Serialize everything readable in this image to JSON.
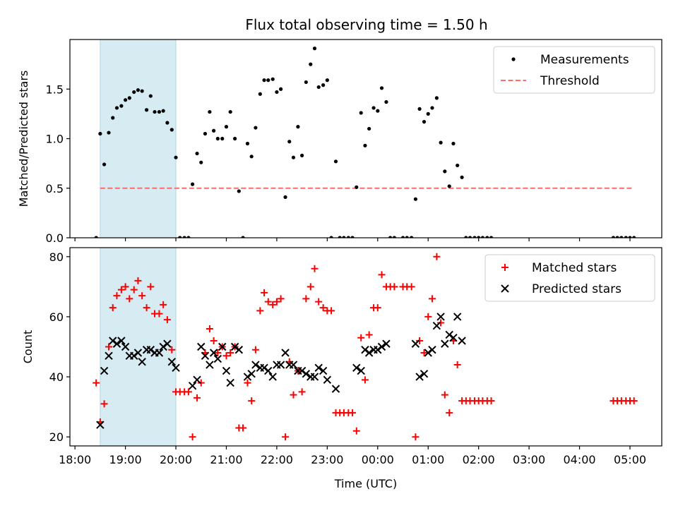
{
  "title": "Flux total observing time = 1.50 h",
  "colors": {
    "shade": "#add8e6",
    "threshold": "#ff6b6b",
    "measurement": "#000000",
    "matched": "#ff0000",
    "predicted": "#000000"
  },
  "chart_data": [
    {
      "type": "scatter",
      "ylabel": "Matched/Predicted stars",
      "xlim": [
        17.9,
        29.63
      ],
      "ylim": [
        0,
        2.0
      ],
      "y_ticks": [
        0.0,
        0.5,
        1.0,
        1.5
      ],
      "y_tick_labels": [
        "0.0",
        "0.5",
        "1.0",
        "1.5"
      ],
      "shade_x": [
        18.5,
        20.0
      ],
      "threshold": {
        "name": "Threshold",
        "y": 0.5,
        "x": [
          18.5,
          29.05
        ]
      },
      "legend": {
        "position": "top-right",
        "entries": [
          "Measurements",
          "Threshold"
        ]
      },
      "series": [
        {
          "name": "Measurements",
          "x": [
            18.42,
            18.5,
            18.58,
            18.67,
            18.75,
            18.83,
            18.92,
            19.0,
            19.08,
            19.17,
            19.25,
            19.33,
            19.42,
            19.5,
            19.58,
            19.67,
            19.75,
            19.83,
            19.92,
            20.0,
            20.08,
            20.17,
            20.25,
            20.33,
            20.42,
            20.5,
            20.58,
            20.67,
            20.75,
            20.83,
            20.92,
            21.0,
            21.08,
            21.17,
            21.25,
            21.33,
            21.42,
            21.5,
            21.58,
            21.67,
            21.75,
            21.83,
            21.92,
            22.0,
            22.08,
            22.17,
            22.25,
            22.33,
            22.42,
            22.5,
            22.58,
            22.67,
            22.75,
            22.83,
            22.92,
            23.0,
            23.08,
            23.17,
            23.25,
            23.33,
            23.42,
            23.5,
            23.58,
            23.67,
            23.75,
            23.83,
            23.92,
            24.0,
            24.08,
            24.17,
            24.25,
            24.33,
            24.5,
            24.58,
            24.67,
            24.75,
            24.83,
            24.92,
            25.0,
            25.08,
            25.17,
            25.25,
            25.33,
            25.42,
            25.5,
            25.58,
            25.67,
            25.75,
            25.83,
            25.92,
            26.0,
            26.08,
            26.17,
            26.25,
            28.67,
            28.75,
            28.83,
            28.92,
            29.0,
            29.08
          ],
          "y": [
            0.0,
            1.05,
            0.74,
            1.06,
            1.21,
            1.31,
            1.33,
            1.39,
            1.41,
            1.47,
            1.49,
            1.48,
            1.29,
            1.43,
            1.27,
            1.27,
            1.28,
            1.16,
            1.09,
            0.81,
            0.0,
            0.0,
            0.0,
            0.54,
            0.85,
            0.76,
            1.05,
            1.27,
            1.08,
            1.0,
            1.0,
            1.12,
            1.27,
            1.0,
            0.47,
            0.0,
            0.95,
            0.82,
            1.11,
            1.45,
            1.59,
            1.59,
            1.6,
            1.47,
            1.5,
            0.41,
            0.97,
            0.81,
            1.12,
            0.83,
            1.57,
            1.75,
            1.91,
            1.52,
            1.54,
            1.59,
            0.0,
            0.77,
            0.0,
            0.0,
            0.0,
            0.0,
            0.51,
            1.26,
            0.93,
            1.1,
            1.31,
            1.28,
            1.51,
            1.37,
            0.0,
            0.0,
            0.0,
            0.0,
            0.0,
            0.39,
            1.3,
            1.17,
            1.25,
            1.31,
            1.41,
            0.96,
            0.67,
            0.52,
            0.95,
            0.73,
            0.61,
            0.0,
            0.0,
            0.0,
            0.0,
            0.0,
            0.0,
            0.0,
            0.0,
            0.0,
            0.0,
            0.0,
            0.0,
            0.0
          ]
        }
      ]
    },
    {
      "type": "scatter",
      "ylabel": "Count",
      "xlabel": "Time (UTC)",
      "xlim": [
        17.9,
        29.63
      ],
      "ylim": [
        17,
        83
      ],
      "y_ticks": [
        20,
        40,
        60,
        80
      ],
      "y_tick_labels": [
        "20",
        "40",
        "60",
        "80"
      ],
      "x_ticks": [
        18,
        19,
        20,
        21,
        22,
        23,
        24,
        25,
        26,
        27,
        28,
        29
      ],
      "x_tick_labels": [
        "18:00",
        "19:00",
        "20:00",
        "21:00",
        "22:00",
        "23:00",
        "00:00",
        "01:00",
        "02:00",
        "03:00",
        "04:00",
        "05:00"
      ],
      "shade_x": [
        18.5,
        20.0
      ],
      "legend": {
        "position": "top-right",
        "entries": [
          "Matched stars",
          "Predicted stars"
        ]
      },
      "series": [
        {
          "name": "Matched stars",
          "x": [
            18.42,
            18.5,
            18.58,
            18.67,
            18.75,
            18.83,
            18.92,
            19.0,
            19.08,
            19.17,
            19.25,
            19.33,
            19.42,
            19.5,
            19.58,
            19.67,
            19.75,
            19.83,
            19.92,
            20.0,
            20.08,
            20.17,
            20.25,
            20.33,
            20.42,
            20.5,
            20.58,
            20.67,
            20.75,
            20.83,
            20.92,
            21.0,
            21.08,
            21.17,
            21.25,
            21.33,
            21.42,
            21.5,
            21.58,
            21.67,
            21.75,
            21.83,
            21.92,
            22.0,
            22.08,
            22.17,
            22.25,
            22.33,
            22.42,
            22.5,
            22.58,
            22.67,
            22.75,
            22.83,
            22.92,
            23.0,
            23.08,
            23.17,
            23.25,
            23.33,
            23.42,
            23.5,
            23.58,
            23.67,
            23.75,
            23.83,
            23.92,
            24.0,
            24.08,
            24.17,
            24.25,
            24.33,
            24.5,
            24.58,
            24.67,
            24.75,
            24.83,
            24.92,
            25.0,
            25.08,
            25.17,
            25.25,
            25.33,
            25.42,
            25.5,
            25.58,
            25.67,
            25.75,
            25.83,
            25.92,
            26.0,
            26.08,
            26.17,
            26.25,
            28.67,
            28.75,
            28.83,
            28.92,
            29.0,
            29.08
          ],
          "y": [
            38,
            25,
            31,
            50,
            63,
            67,
            69,
            70,
            66,
            69,
            72,
            67,
            63,
            70,
            61,
            61,
            64,
            59,
            49,
            35,
            35,
            35,
            35,
            20,
            33,
            38,
            48,
            56,
            52,
            48,
            50,
            47,
            48,
            50,
            23,
            23,
            38,
            32,
            49,
            62,
            68,
            65,
            64,
            65,
            66,
            20,
            45,
            34,
            42,
            35,
            66,
            70,
            76,
            65,
            63,
            62,
            62,
            28,
            28,
            28,
            28,
            28,
            22,
            53,
            39,
            54,
            63,
            63,
            74,
            70,
            70,
            70,
            70,
            70,
            70,
            20,
            52,
            48,
            60,
            66,
            80,
            58,
            34,
            28,
            52,
            44,
            32,
            32,
            32,
            32,
            32,
            32,
            32,
            32,
            32,
            32,
            32,
            32,
            32,
            32
          ]
        },
        {
          "name": "Predicted stars",
          "x": [
            18.5,
            18.58,
            18.67,
            18.75,
            18.83,
            18.92,
            19.0,
            19.08,
            19.17,
            19.25,
            19.33,
            19.42,
            19.5,
            19.58,
            19.67,
            19.75,
            19.83,
            19.92,
            20.0,
            20.33,
            20.42,
            20.5,
            20.58,
            20.67,
            20.75,
            20.83,
            20.92,
            21.0,
            21.08,
            21.17,
            21.25,
            21.42,
            21.5,
            21.58,
            21.67,
            21.75,
            21.83,
            21.92,
            22.0,
            22.08,
            22.17,
            22.25,
            22.33,
            22.42,
            22.5,
            22.58,
            22.67,
            22.75,
            22.83,
            22.92,
            23.0,
            23.17,
            23.58,
            23.67,
            23.75,
            23.83,
            23.92,
            24.0,
            24.08,
            24.17,
            24.75,
            24.83,
            24.92,
            25.0,
            25.08,
            25.17,
            25.25,
            25.33,
            25.42,
            25.5,
            25.58,
            25.67
          ],
          "y": [
            24,
            42,
            47,
            52,
            51,
            52,
            50,
            47,
            47,
            48,
            45,
            49,
            49,
            48,
            48,
            50,
            51,
            45,
            43,
            37,
            39,
            50,
            47,
            44,
            48,
            46,
            50,
            42,
            38,
            50,
            49,
            40,
            41,
            44,
            43,
            43,
            42,
            40,
            44,
            44,
            48,
            44,
            44,
            42,
            42,
            41,
            40,
            40,
            43,
            42,
            39,
            36,
            43,
            42,
            49,
            48,
            49,
            49,
            50,
            51,
            51,
            40,
            41,
            48,
            49,
            57,
            60,
            51,
            54,
            53,
            60,
            52
          ]
        }
      ]
    }
  ]
}
